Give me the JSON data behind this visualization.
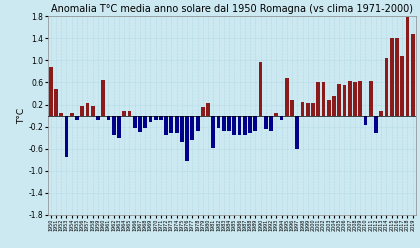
{
  "title": "Anomalia T°C media anno solare dal 1950 Romagna (vs clima 1971-2000)",
  "ylabel": "T°C",
  "ylim": [
    -1.8,
    1.8
  ],
  "yticks": [
    -1.8,
    -1.4,
    -1.0,
    -0.6,
    -0.2,
    0.2,
    0.6,
    1.0,
    1.4,
    1.8
  ],
  "background_color": "#cce8f0",
  "years": [
    1950,
    1951,
    1952,
    1953,
    1954,
    1955,
    1956,
    1957,
    1958,
    1959,
    1960,
    1961,
    1962,
    1963,
    1964,
    1965,
    1966,
    1967,
    1968,
    1969,
    1970,
    1971,
    1972,
    1973,
    1974,
    1975,
    1976,
    1977,
    1978,
    1979,
    1980,
    1981,
    1982,
    1983,
    1984,
    1985,
    1986,
    1987,
    1988,
    1989,
    1990,
    1991,
    1992,
    1993,
    1994,
    1995,
    1996,
    1997,
    1998,
    1999,
    2000,
    2001,
    2002,
    2003,
    2004,
    2005,
    2006,
    2007,
    2008,
    2009,
    2010,
    2011,
    2012,
    2013,
    2014,
    2015,
    2016,
    2017,
    2018,
    2019
  ],
  "values": [
    0.88,
    0.48,
    0.05,
    -0.75,
    0.05,
    -0.08,
    0.18,
    0.22,
    0.18,
    -0.08,
    0.65,
    -0.08,
    -0.35,
    -0.4,
    0.08,
    0.08,
    -0.22,
    -0.3,
    -0.22,
    -0.12,
    -0.08,
    -0.08,
    -0.35,
    -0.32,
    -0.32,
    -0.48,
    -0.82,
    -0.45,
    -0.28,
    0.15,
    0.22,
    -0.58,
    -0.22,
    -0.28,
    -0.28,
    -0.35,
    -0.35,
    -0.35,
    -0.32,
    -0.28,
    0.98,
    -0.25,
    -0.28,
    0.05,
    -0.08,
    0.68,
    0.28,
    -0.6,
    0.25,
    0.22,
    0.22,
    0.6,
    0.6,
    0.28,
    0.35,
    0.58,
    0.55,
    0.62,
    0.6,
    0.62,
    -0.18,
    0.62,
    -0.32,
    0.08,
    1.05,
    1.4,
    1.4,
    1.08,
    1.78,
    1.48
  ],
  "pos_color": "#8B1A1A",
  "neg_color": "#00008B",
  "grid_color": "#99ccdd",
  "title_fontsize": 7.0,
  "bar_width": 0.72
}
